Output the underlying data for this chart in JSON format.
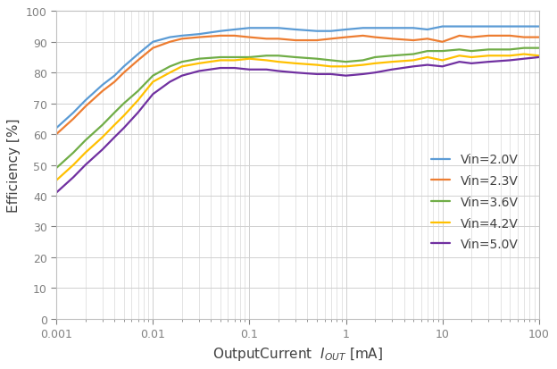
{
  "xlabel": "OutputCurrent  $I_{OUT}$ [mA]",
  "ylabel": "Efficiency [%]",
  "ylim": [
    0,
    100
  ],
  "xlim": [
    0.001,
    100
  ],
  "yticks": [
    0,
    10,
    20,
    30,
    40,
    50,
    60,
    70,
    80,
    90,
    100
  ],
  "background_color": "#ffffff",
  "grid_color": "#d0d0d0",
  "series": [
    {
      "label": "Vin=2.0V",
      "color": "#5b9bd5",
      "x": [
        0.001,
        0.0015,
        0.002,
        0.003,
        0.004,
        0.005,
        0.007,
        0.01,
        0.015,
        0.02,
        0.03,
        0.05,
        0.07,
        0.1,
        0.15,
        0.2,
        0.3,
        0.5,
        0.7,
        1.0,
        1.5,
        2.0,
        3.0,
        5.0,
        7.0,
        10,
        15,
        20,
        30,
        50,
        70,
        100
      ],
      "y": [
        62,
        67,
        71,
        76,
        79,
        82,
        86,
        90,
        91.5,
        92,
        92.5,
        93.5,
        94,
        94.5,
        94.5,
        94.5,
        94,
        93.5,
        93.5,
        94,
        94.5,
        94.5,
        94.5,
        94.5,
        94,
        95,
        95,
        95,
        95,
        95,
        95,
        95
      ]
    },
    {
      "label": "Vin=2.3V",
      "color": "#ed7d31",
      "x": [
        0.001,
        0.0015,
        0.002,
        0.003,
        0.004,
        0.005,
        0.007,
        0.01,
        0.015,
        0.02,
        0.03,
        0.05,
        0.07,
        0.1,
        0.15,
        0.2,
        0.3,
        0.5,
        0.7,
        1.0,
        1.5,
        2.0,
        3.0,
        5.0,
        7.0,
        10,
        15,
        20,
        30,
        50,
        70,
        100
      ],
      "y": [
        60,
        65,
        69,
        74,
        77,
        80,
        84,
        88,
        90,
        91,
        91.5,
        92,
        92,
        91.5,
        91,
        91,
        90.5,
        90.5,
        91,
        91.5,
        92,
        91.5,
        91,
        90.5,
        91,
        90,
        92,
        91.5,
        92,
        92,
        91.5,
        91.5
      ]
    },
    {
      "label": "Vin=3.6V",
      "color": "#70ad47",
      "x": [
        0.001,
        0.0015,
        0.002,
        0.003,
        0.004,
        0.005,
        0.007,
        0.01,
        0.015,
        0.02,
        0.03,
        0.05,
        0.07,
        0.1,
        0.15,
        0.2,
        0.3,
        0.5,
        0.7,
        1.0,
        1.5,
        2.0,
        3.0,
        5.0,
        7.0,
        10,
        15,
        20,
        30,
        50,
        70,
        100
      ],
      "y": [
        49,
        54,
        58,
        63,
        67,
        70,
        74,
        79,
        82,
        83.5,
        84.5,
        85,
        85,
        85,
        85.5,
        85.5,
        85,
        84.5,
        84,
        83.5,
        84,
        85,
        85.5,
        86,
        87,
        87,
        87.5,
        87,
        87.5,
        87.5,
        88,
        88
      ]
    },
    {
      "label": "Vin=4.2V",
      "color": "#ffc000",
      "x": [
        0.001,
        0.0015,
        0.002,
        0.003,
        0.004,
        0.005,
        0.007,
        0.01,
        0.015,
        0.02,
        0.03,
        0.05,
        0.07,
        0.1,
        0.15,
        0.2,
        0.3,
        0.5,
        0.7,
        1.0,
        1.5,
        2.0,
        3.0,
        5.0,
        7.0,
        10,
        15,
        20,
        30,
        50,
        70,
        100
      ],
      "y": [
        45,
        50,
        54,
        59,
        63,
        66,
        71,
        77,
        80,
        82,
        83,
        84,
        84,
        84.5,
        84,
        83.5,
        83,
        82.5,
        82,
        82,
        82.5,
        83,
        83.5,
        84,
        85,
        84,
        85.5,
        85,
        85.5,
        85.5,
        86,
        85.5
      ]
    },
    {
      "label": "Vin=5.0V",
      "color": "#7030a0",
      "x": [
        0.001,
        0.0015,
        0.002,
        0.003,
        0.004,
        0.005,
        0.007,
        0.01,
        0.015,
        0.02,
        0.03,
        0.05,
        0.07,
        0.1,
        0.15,
        0.2,
        0.3,
        0.5,
        0.7,
        1.0,
        1.5,
        2.0,
        3.0,
        5.0,
        7.0,
        10,
        15,
        20,
        30,
        50,
        70,
        100
      ],
      "y": [
        41,
        46,
        50,
        55,
        59,
        62,
        67,
        73,
        77,
        79,
        80.5,
        81.5,
        81.5,
        81,
        81,
        80.5,
        80,
        79.5,
        79.5,
        79,
        79.5,
        80,
        81,
        82,
        82.5,
        82,
        83.5,
        83,
        83.5,
        84,
        84.5,
        85
      ]
    }
  ],
  "linewidth": 1.6,
  "tick_label_color": "#808080",
  "tick_label_size": 9,
  "axis_label_size": 11,
  "legend_fontsize": 10,
  "legend_labelspacing": 0.7
}
